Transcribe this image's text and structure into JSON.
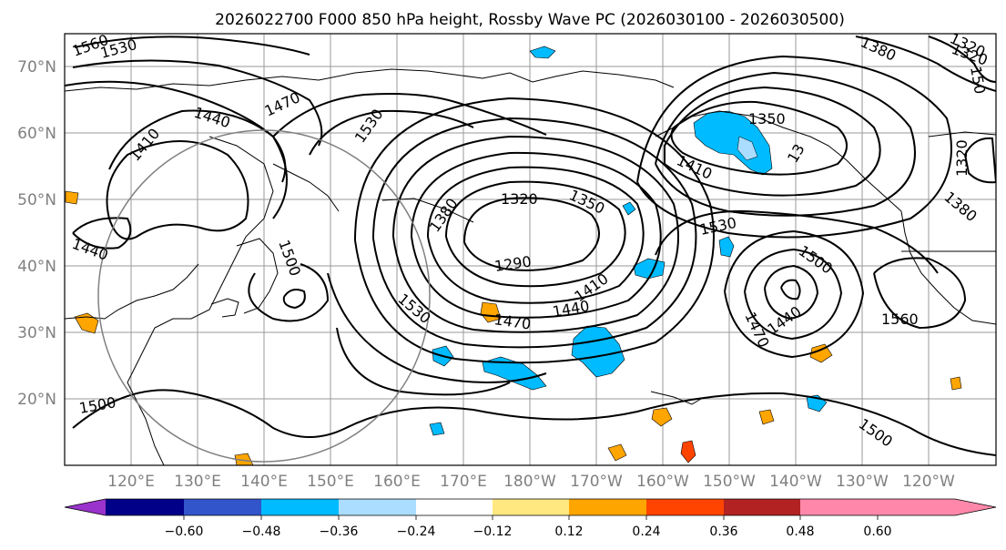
{
  "title": "2026022700 F000 850 hPa height, Rossby Wave PC (2026030100 - 2026030500)",
  "latitude_labels": [
    "70°N",
    "60°N",
    "50°N",
    "40°N",
    "30°N",
    "20°N"
  ],
  "longitude_labels": [
    "120°E",
    "130°E",
    "140°E",
    "150°E",
    "160°E",
    "170°E",
    "180°W",
    "170°W",
    "160°W",
    "150°W",
    "140°W",
    "130°W",
    "120°W"
  ],
  "colorbar": {
    "ticks": [
      "−0.60",
      "−0.48",
      "−0.36",
      "−0.24",
      "−0.12",
      "0.12",
      "0.24",
      "0.36",
      "0.48",
      "0.60"
    ],
    "colors": [
      "#9933cc",
      "#000088",
      "#3355cc",
      "#00bbff",
      "#aaddff",
      "#ffffff",
      "#ffe880",
      "#ffa500",
      "#ff4400",
      "#b22222",
      "#ff88aa"
    ]
  },
  "contour_labels": [
    {
      "text": "1560"
    },
    {
      "text": "1530"
    },
    {
      "text": "1470"
    },
    {
      "text": "1440"
    },
    {
      "text": "1410"
    },
    {
      "text": "1530"
    },
    {
      "text": "1440"
    },
    {
      "text": "1500"
    },
    {
      "text": "1380"
    },
    {
      "text": "1320"
    },
    {
      "text": "1350"
    },
    {
      "text": "1290"
    },
    {
      "text": "1410"
    },
    {
      "text": "1440"
    },
    {
      "text": "1470"
    },
    {
      "text": "1530"
    },
    {
      "text": "1500"
    },
    {
      "text": "1350"
    },
    {
      "text": "1410"
    },
    {
      "text": "13"
    },
    {
      "text": "1530"
    },
    {
      "text": "1500"
    },
    {
      "text": "1440"
    },
    {
      "text": "1470"
    },
    {
      "text": "1560"
    },
    {
      "text": "1500"
    },
    {
      "text": "1380"
    },
    {
      "text": "1320"
    },
    {
      "text": "1380"
    },
    {
      "text": "150"
    },
    {
      "text": "1320"
    },
    {
      "text": "1320"
    }
  ],
  "colors": {
    "contour": "#000000",
    "grid": "#9a9a9a",
    "circle": "#808080",
    "axis_text": "#808080"
  }
}
